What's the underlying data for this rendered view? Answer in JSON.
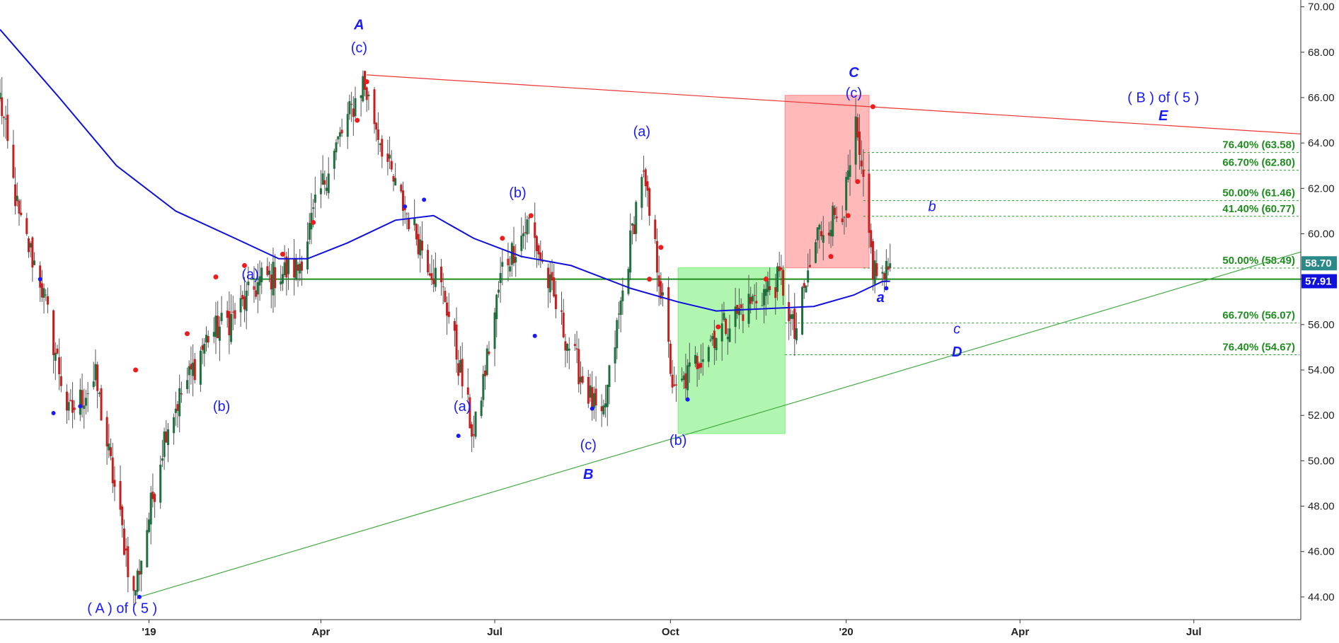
{
  "chart_data": {
    "type": "candlestick",
    "y_axis": {
      "ticks": [
        "44.00",
        "46.00",
        "48.00",
        "50.00",
        "52.00",
        "54.00",
        "56.00",
        "58.00",
        "60.00",
        "62.00",
        "64.00",
        "66.00",
        "68.00",
        "70.00"
      ],
      "range": [
        43.0,
        70.3
      ],
      "position": "right",
      "last_price": "58.70",
      "moving_average_last": "57.91"
    },
    "x_axis": {
      "ticks": [
        "'19",
        "Apr",
        "Jul",
        "Oct",
        "'20",
        "Apr",
        "Jul"
      ],
      "tick_dates": [
        "2019-01-01",
        "2019-04-01",
        "2019-07-01",
        "2019-10-01",
        "2020-01-01",
        "2020-04-01",
        "2020-07-01"
      ],
      "range": [
        "2018-10-15",
        "2020-08-26"
      ]
    },
    "series": [
      {
        "type": "candlestick",
        "key_points": [
          {
            "date": "2018-10-15",
            "value": 66.0
          },
          {
            "date": "2018-10-25",
            "value": 60.6
          },
          {
            "date": "2018-11-05",
            "value": 58.0
          },
          {
            "date": "2018-11-20",
            "value": 52.0
          },
          {
            "date": "2018-12-04",
            "value": 53.6
          },
          {
            "date": "2018-12-24",
            "value": 44.0
          },
          {
            "date": "2019-01-10",
            "value": 51.5
          },
          {
            "date": "2019-02-01",
            "value": 55.5
          },
          {
            "date": "2019-02-15",
            "value": 56.4
          },
          {
            "date": "2019-03-01",
            "value": 58.0
          },
          {
            "date": "2019-03-20",
            "value": 58.5
          },
          {
            "date": "2019-04-05",
            "value": 63.0
          },
          {
            "date": "2019-04-23",
            "value": 66.7
          },
          {
            "date": "2019-05-10",
            "value": 62.0
          },
          {
            "date": "2019-06-05",
            "value": 57.2
          },
          {
            "date": "2019-06-20",
            "value": 51.0
          },
          {
            "date": "2019-07-05",
            "value": 58.5
          },
          {
            "date": "2019-07-19",
            "value": 60.5
          },
          {
            "date": "2019-08-07",
            "value": 55.5
          },
          {
            "date": "2019-08-26",
            "value": 51.5
          },
          {
            "date": "2019-09-16",
            "value": 62.8
          },
          {
            "date": "2019-09-25",
            "value": 58.2
          },
          {
            "date": "2019-10-03",
            "value": 52.8
          },
          {
            "date": "2019-10-23",
            "value": 55.5
          },
          {
            "date": "2019-11-12",
            "value": 57.0
          },
          {
            "date": "2019-11-28",
            "value": 58.0
          },
          {
            "date": "2019-12-05",
            "value": 55.5
          },
          {
            "date": "2019-12-17",
            "value": 60.0
          },
          {
            "date": "2019-12-31",
            "value": 61.3
          },
          {
            "date": "2020-01-06",
            "value": 64.5
          },
          {
            "date": "2020-01-15",
            "value": 58.5
          },
          {
            "date": "2020-01-21",
            "value": 58.0
          },
          {
            "date": "2020-01-24",
            "value": 58.7
          }
        ]
      },
      {
        "type": "line",
        "color": "#1010dd",
        "points": [
          {
            "date": "2018-10-15",
            "value": 69.0
          },
          {
            "date": "2018-11-15",
            "value": 66.0
          },
          {
            "date": "2018-12-15",
            "value": 63.0
          },
          {
            "date": "2019-01-15",
            "value": 61.0
          },
          {
            "date": "2019-02-15",
            "value": 59.8
          },
          {
            "date": "2019-03-10",
            "value": 58.9
          },
          {
            "date": "2019-03-25",
            "value": 58.9
          },
          {
            "date": "2019-04-15",
            "value": 59.6
          },
          {
            "date": "2019-05-10",
            "value": 60.6
          },
          {
            "date": "2019-05-30",
            "value": 60.8
          },
          {
            "date": "2019-06-20",
            "value": 59.8
          },
          {
            "date": "2019-07-15",
            "value": 59.0
          },
          {
            "date": "2019-08-10",
            "value": 58.6
          },
          {
            "date": "2019-09-10",
            "value": 57.6
          },
          {
            "date": "2019-10-05",
            "value": 57.0
          },
          {
            "date": "2019-10-25",
            "value": 56.6
          },
          {
            "date": "2019-11-20",
            "value": 56.7
          },
          {
            "date": "2019-12-15",
            "value": 56.8
          },
          {
            "date": "2020-01-05",
            "value": 57.3
          },
          {
            "date": "2020-01-20",
            "value": 57.9
          },
          {
            "date": "2020-01-24",
            "value": 57.91
          }
        ]
      }
    ],
    "horizontal_line": {
      "value": 58.0,
      "from_date": "2019-02-23",
      "color": "#1e8c1e"
    },
    "trendlines": [
      {
        "name": "upper",
        "color": "#ee3333",
        "from": {
          "date": "2019-04-25",
          "value": 67.0
        },
        "to": {
          "date": "2020-08-26",
          "value": 64.4
        }
      },
      {
        "name": "lower",
        "color": "#44aa44",
        "from": {
          "date": "2018-12-27",
          "value": 44.0
        },
        "to": {
          "date": "2020-08-26",
          "value": 59.2
        }
      }
    ],
    "zones": [
      {
        "color": "#7cf07c",
        "from_date": "2019-10-05",
        "to_date": "2019-11-30",
        "low": 51.2,
        "high": 58.5
      },
      {
        "color": "#ff8a8a",
        "from_date": "2019-11-30",
        "to_date": "2020-01-13",
        "low": 58.5,
        "high": 66.1
      }
    ],
    "fib_levels": [
      {
        "label": "76.40% (63.58)",
        "value": 63.58
      },
      {
        "label": "66.70% (62.80)",
        "value": 62.8
      },
      {
        "label": "50.00% (61.46)",
        "value": 61.46
      },
      {
        "label": "41.40% (60.77)",
        "value": 60.77
      },
      {
        "label": "50.00% (58.49)",
        "value": 58.49
      },
      {
        "label": "66.70% (56.07)",
        "value": 56.07
      },
      {
        "label": "76.40% (54.67)",
        "value": 54.67
      }
    ],
    "annotations": [
      {
        "text": "A",
        "date": "2019-04-21",
        "value": 69.0,
        "style": "italic-bold"
      },
      {
        "text": "(c)",
        "date": "2019-04-21",
        "value": 68.0,
        "style": "normal"
      },
      {
        "text": "(a)",
        "date": "2019-02-23",
        "value": 58.0,
        "style": "normal"
      },
      {
        "text": "(b)",
        "date": "2019-02-08",
        "value": 52.2,
        "style": "normal"
      },
      {
        "text": "( A ) of ( 5 )",
        "date": "2018-12-18",
        "value": 43.3,
        "style": "normal"
      },
      {
        "text": "(a)",
        "date": "2019-06-14",
        "value": 52.2,
        "style": "normal"
      },
      {
        "text": "(b)",
        "date": "2019-07-13",
        "value": 61.6,
        "style": "normal"
      },
      {
        "text": "(c)",
        "date": "2019-08-19",
        "value": 50.5,
        "style": "normal"
      },
      {
        "text": "B",
        "date": "2019-08-19",
        "value": 49.2,
        "style": "italic-bold"
      },
      {
        "text": "(a)",
        "date": "2019-09-16",
        "value": 64.3,
        "style": "normal"
      },
      {
        "text": "(b)",
        "date": "2019-10-05",
        "value": 50.7,
        "style": "normal"
      },
      {
        "text": "C",
        "date": "2020-01-05",
        "value": 66.9,
        "style": "italic-bold"
      },
      {
        "text": "(c)",
        "date": "2020-01-05",
        "value": 66.0,
        "style": "normal"
      },
      {
        "text": "a",
        "date": "2020-01-19",
        "value": 57.0,
        "style": "italic-bold"
      },
      {
        "text": "b",
        "date": "2020-02-15",
        "value": 61.0,
        "style": "italic"
      },
      {
        "text": "c",
        "date": "2020-02-28",
        "value": 55.6,
        "style": "italic"
      },
      {
        "text": "D",
        "date": "2020-02-28",
        "value": 54.6,
        "style": "italic-bold"
      },
      {
        "text": "( B ) of ( 5 )",
        "date": "2020-06-15",
        "value": 65.8,
        "style": "normal"
      },
      {
        "text": "E",
        "date": "2020-06-15",
        "value": 65.0,
        "style": "italic-bold"
      }
    ],
    "badges": [
      {
        "text": "58.70",
        "value": 58.7,
        "color": "#2a8a8a"
      },
      {
        "text": "57.91",
        "value": 57.91,
        "color": "#1010dd"
      }
    ]
  }
}
